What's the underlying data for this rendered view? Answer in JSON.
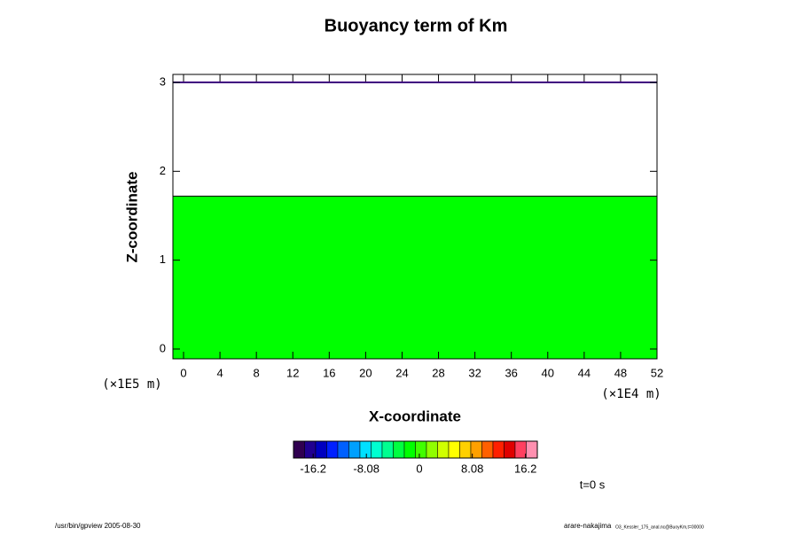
{
  "chart_data": {
    "type": "contour",
    "title": "Buoyancy term of Km",
    "xlabel": "X-coordinate",
    "ylabel": "Z-coordinate",
    "x_unit_label": "(×1E4 m)",
    "y_unit_label": "(×1E5 m)",
    "xlim": [
      -1.17,
      52
    ],
    "xticks": [
      0,
      4,
      8,
      12,
      16,
      20,
      24,
      28,
      32,
      36,
      40,
      44,
      48,
      52
    ],
    "ylim": [
      -0.11,
      3.09
    ],
    "yticks": [
      0,
      1,
      2,
      3
    ],
    "filled_region": {
      "ylim": [
        -0.11,
        1.72
      ],
      "color": "#00ff00"
    },
    "boundary_line": {
      "y": 3,
      "color": "#400080"
    },
    "colorbar": {
      "lim": [
        -19.2,
        18
      ],
      "ticks": [
        -16.2,
        -8.08,
        0,
        8.08,
        16.2
      ],
      "colors": [
        "#300050",
        "#200090",
        "#0000c0",
        "#0020ff",
        "#0060ff",
        "#00a0ff",
        "#00e0ff",
        "#00ffd0",
        "#00ff90",
        "#00ff40",
        "#00ff00",
        "#40ff00",
        "#90ff00",
        "#d0ff00",
        "#ffff00",
        "#ffd000",
        "#ffa000",
        "#ff6000",
        "#ff2000",
        "#e00000",
        "#ff4060",
        "#ff90b0"
      ]
    },
    "time_label": "t=0 s",
    "footer_left": "/usr/bin/gpview 2005-08-30",
    "footer_right": "arare-nakajima",
    "footer_right_small": "O3_Kessler_175_anal.nc@BuoyKm,t=00000"
  }
}
